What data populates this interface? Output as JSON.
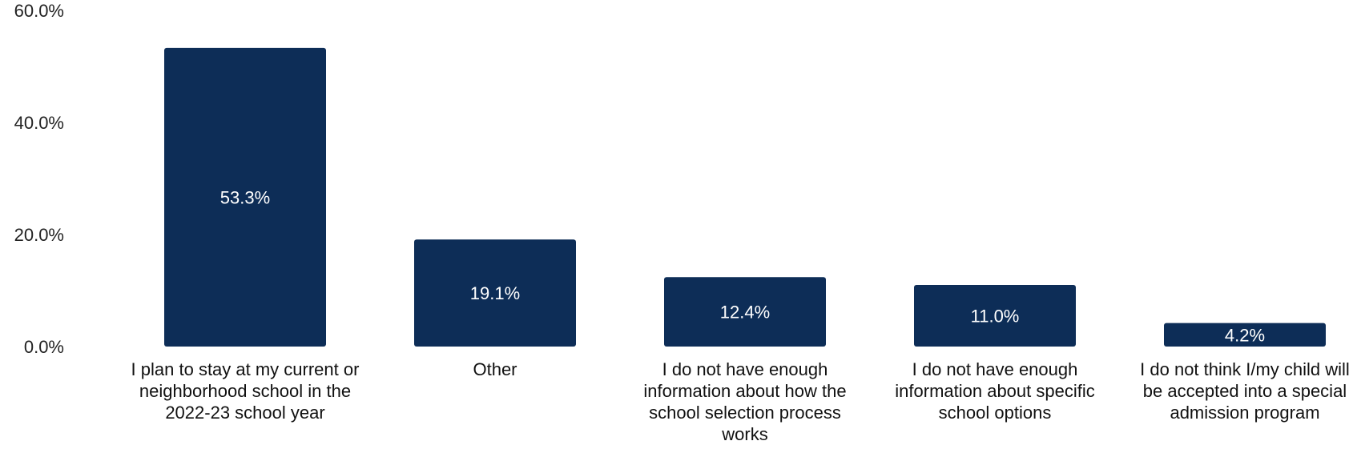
{
  "chart_data": {
    "type": "bar",
    "categories": [
      "I plan to stay at my current or neighborhood school in the 2022-23 school year",
      "Other",
      "I do not have enough information about how the school selection process works",
      "I do not have enough information about specific school options",
      "I do not think I/my child will be accepted into a special admission program"
    ],
    "values": [
      53.3,
      19.1,
      12.4,
      11.0,
      4.2
    ],
    "data_labels": [
      "53.3%",
      "19.1%",
      "12.4%",
      "11.0%",
      "4.2%"
    ],
    "y_ticks": [
      0,
      20,
      40,
      60
    ],
    "y_tick_labels": [
      "0.0%",
      "20.0%",
      "40.0%",
      "60.0%"
    ],
    "ylim": [
      0,
      60
    ],
    "grid": false,
    "legend": "none",
    "bar_color": "#0d2d57",
    "title": "",
    "xlabel": "",
    "ylabel": ""
  }
}
